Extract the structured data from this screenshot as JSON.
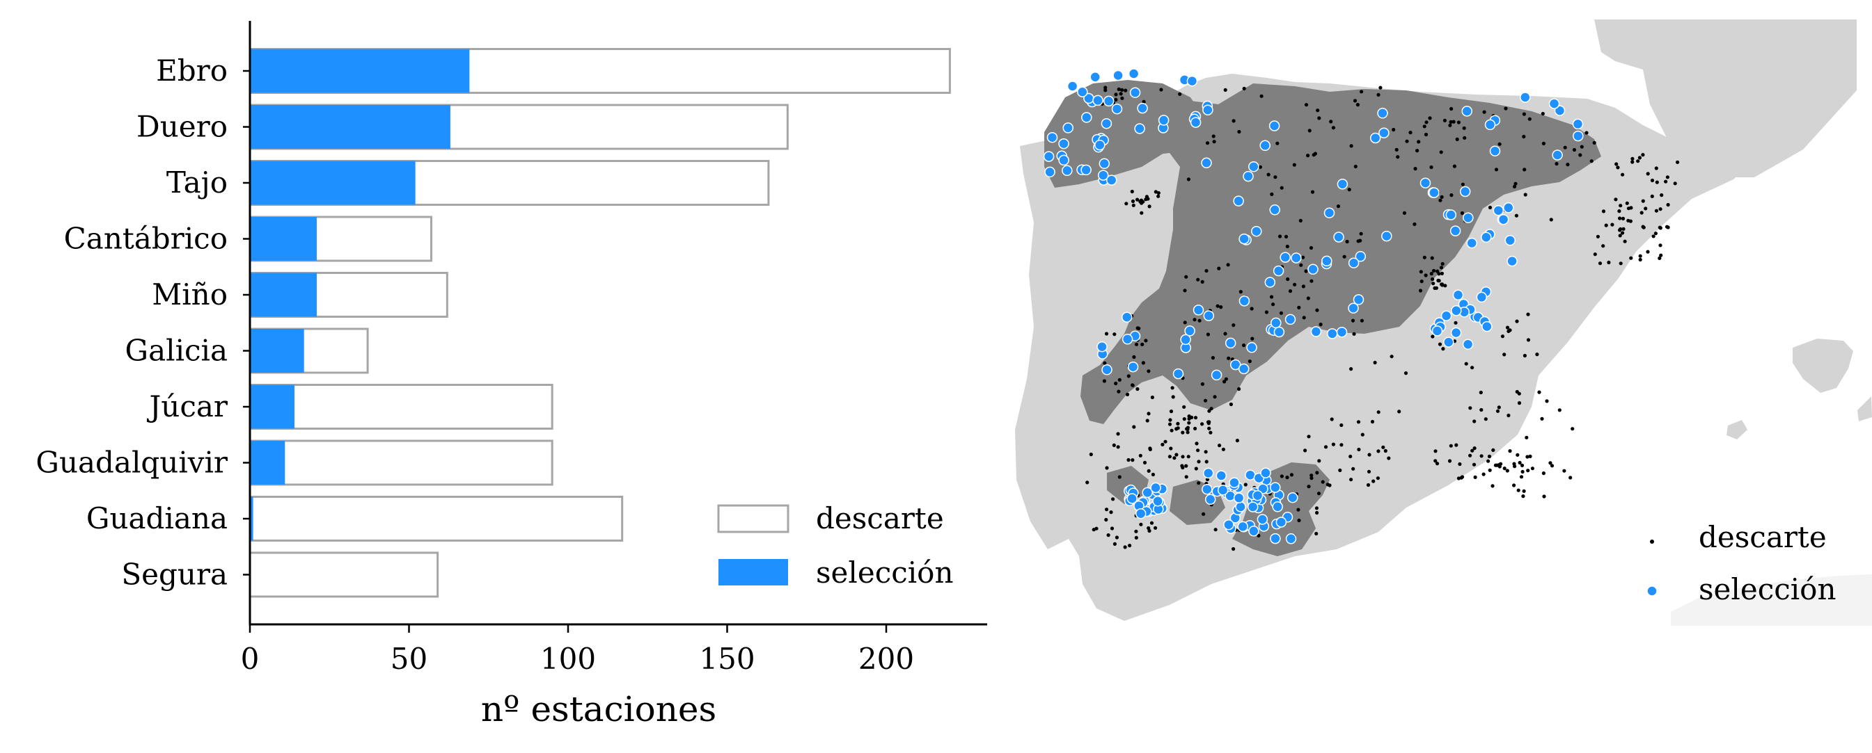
{
  "chart_data": [
    {
      "type": "bar",
      "orientation": "horizontal",
      "stacking": "overlay",
      "categories": [
        "Ebro",
        "Duero",
        "Tajo",
        "Cantábrico",
        "Miño",
        "Galicia",
        "Júcar",
        "Guadalquivir",
        "Guadiana",
        "Segura"
      ],
      "series": [
        {
          "name": "descarte",
          "style": "outline",
          "values": [
            220,
            169,
            163,
            57,
            62,
            37,
            95,
            95,
            117,
            59
          ]
        },
        {
          "name": "selección",
          "style": "filled",
          "values": [
            69,
            63,
            52,
            21,
            21,
            17,
            14,
            11,
            1,
            0
          ]
        }
      ],
      "xlabel": "nº estaciones",
      "ylabel": "",
      "xlim": [
        0,
        232
      ],
      "xticks": [
        0,
        50,
        100,
        150,
        200
      ],
      "xtick_labels": [
        "0",
        "50",
        "100",
        "150",
        "200"
      ],
      "grid": false,
      "legend": {
        "position": "lower-right",
        "entries": [
          {
            "label": "descarte",
            "swatch": "outline"
          },
          {
            "label": "selección",
            "swatch": "filled"
          }
        ]
      },
      "colors": {
        "seleccion": "#1e90ff",
        "descarte_edge": "#a6a6a6"
      }
    },
    {
      "type": "scatter",
      "subtype": "map",
      "region": "Iberian Peninsula",
      "axes_visible": false,
      "series": [
        {
          "name": "descarte",
          "marker": "small-dot",
          "color": "#000000"
        },
        {
          "name": "selección",
          "marker": "circle",
          "color": "#1e90ff"
        }
      ],
      "legend": {
        "position": "lower-right",
        "entries": [
          {
            "label": "descarte",
            "color": "#000000"
          },
          {
            "label": "selección",
            "color": "#1e90ff"
          }
        ]
      },
      "colors": {
        "land": "#d4d4d4",
        "selected_basins": "#808080",
        "seleccion": "#1e90ff",
        "descarte": "#000000"
      }
    }
  ]
}
